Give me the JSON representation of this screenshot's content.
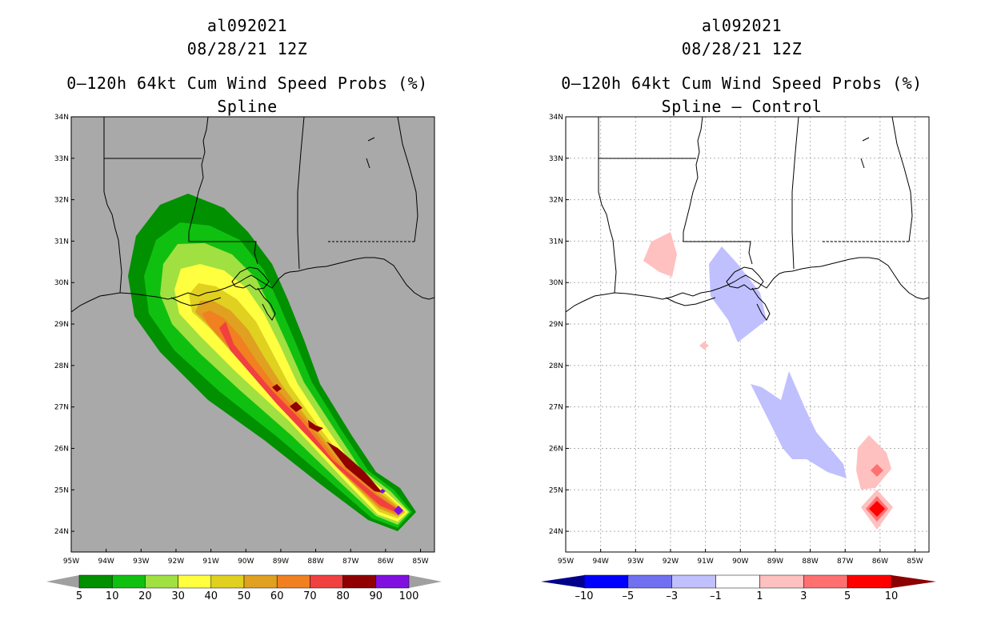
{
  "colors": {
    "land_gray": "#a9a9a9",
    "white": "#ffffff",
    "coast": "#000000",
    "grid": "#b0b0b0"
  },
  "icons": [
    "colorbar-arrow-left-icon",
    "colorbar-arrow-right-icon"
  ],
  "left_panel": {
    "storm_id": "al092021",
    "datetime": "08/28/21 12Z",
    "title": "0–120h 64kt Cum Wind Speed Probs (%)",
    "subtitle": "Spline",
    "colorbar": {
      "labels": [
        "5",
        "10",
        "20",
        "30",
        "40",
        "50",
        "60",
        "70",
        "80",
        "90",
        "100"
      ],
      "colors": [
        "#009000",
        "#10c010",
        "#a0e040",
        "#ffff40",
        "#e0d020",
        "#e0a020",
        "#f08020",
        "#f04040",
        "#900000",
        "#8010e0"
      ],
      "arrow_left": "#a0a0a0",
      "arrow_right": "#a0a0a0"
    }
  },
  "right_panel": {
    "storm_id": "al092021",
    "datetime": "08/28/21 12Z",
    "title": "0–120h 64kt Cum Wind Speed Probs (%)",
    "subtitle": "Spline – Control",
    "colorbar": {
      "labels": [
        "–10",
        "–5",
        "–3",
        "–1",
        "1",
        "3",
        "5",
        "10"
      ],
      "colors": [
        "#0000ff",
        "#7070f0",
        "#c0c0ff",
        "#ffffff",
        "#ffc0c0",
        "#ff7070",
        "#ff0000"
      ],
      "arrow_left": "#00008b",
      "arrow_right": "#8b0000"
    }
  },
  "axes": {
    "lon_labels": [
      "95W",
      "94W",
      "93W",
      "92W",
      "91W",
      "90W",
      "89W",
      "88W",
      "87W",
      "86W",
      "85W"
    ],
    "lat_labels": [
      "24N",
      "25N",
      "26N",
      "27N",
      "28N",
      "29N",
      "30N",
      "31N",
      "32N",
      "33N",
      "34N"
    ]
  },
  "chart_data": [
    {
      "type": "heatmap",
      "title": "0–120h 64kt Cum Wind Speed Probs (%) — Spline",
      "xlim_lon": [
        -95.0,
        -84.6
      ],
      "ylim_lat": [
        23.5,
        34.0
      ],
      "track_points": [
        {
          "lon": -85.5,
          "lat": 24.5,
          "peak_percent": 100
        },
        {
          "lon": -86.0,
          "lat": 25.0,
          "peak_percent": 100
        },
        {
          "lon": -87.0,
          "lat": 26.0,
          "peak_percent": 90
        },
        {
          "lon": -88.0,
          "lat": 26.5,
          "peak_percent": 90
        },
        {
          "lon": -88.5,
          "lat": 27.0,
          "peak_percent": 90
        },
        {
          "lon": -89.0,
          "lat": 27.5,
          "peak_percent": 90
        },
        {
          "lon": -90.0,
          "lat": 28.5,
          "peak_percent": 70
        },
        {
          "lon": -90.8,
          "lat": 29.5,
          "peak_percent": 60
        }
      ],
      "levels": [
        5,
        10,
        20,
        30,
        40,
        50,
        60,
        70,
        80,
        90,
        100
      ]
    },
    {
      "type": "heatmap",
      "title": "0–120h 64kt Cum Wind Speed Probs (%) — Spline – Control",
      "xlim_lon": [
        -95.0,
        -84.6
      ],
      "ylim_lat": [
        23.5,
        34.0
      ],
      "levels": [
        -10,
        -5,
        -3,
        -1,
        1,
        3,
        5,
        10
      ],
      "anomalies": [
        {
          "region": "southwest Louisiana",
          "lon": -92.2,
          "lat": 30.6,
          "value_range": [
            1,
            3
          ]
        },
        {
          "region": "southeast Louisiana",
          "lon": -90.3,
          "lat": 29.6,
          "value_range": [
            -3,
            -1
          ]
        },
        {
          "region": "south of Louisiana",
          "lon": -91.0,
          "lat": 28.5,
          "value_range": [
            1,
            3
          ]
        },
        {
          "region": "central Gulf",
          "lon": -88.2,
          "lat": 26.3,
          "value_range": [
            -3,
            -1
          ]
        },
        {
          "region": "eastern Gulf",
          "lon": -86.1,
          "lat": 25.5,
          "value_range": [
            3,
            5
          ]
        },
        {
          "region": "eastern Gulf south",
          "lon": -86.0,
          "lat": 24.5,
          "value_range": [
            5,
            10
          ]
        }
      ]
    }
  ]
}
